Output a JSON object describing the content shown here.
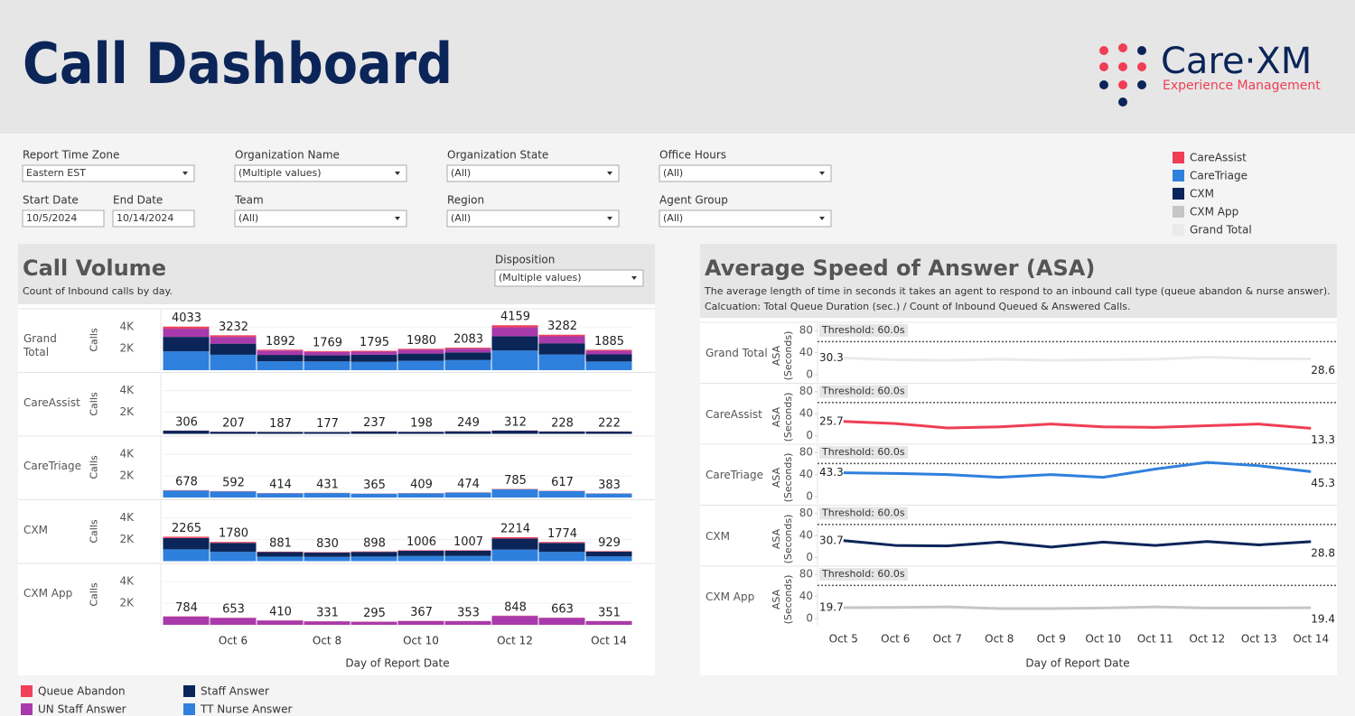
{
  "header": {
    "title": "Call Dashboard"
  },
  "logo": {
    "name": "Care·XM",
    "tagline": "Experience Management"
  },
  "filters": [
    {
      "label": "Report Time Zone",
      "value": "Eastern EST"
    },
    {
      "label": "Organization Name",
      "value": "(Multiple values)"
    },
    {
      "label": "Organization State",
      "value": "(All)"
    },
    {
      "label": "Office Hours",
      "value": "(All)"
    },
    {
      "label": "Team",
      "value": "(All)"
    },
    {
      "label": "Region",
      "value": "(All)"
    },
    {
      "label": "Agent Group",
      "value": "(All)"
    }
  ],
  "date_range": {
    "start": {
      "label": "Start Date",
      "value": "10/5/2024"
    },
    "end": {
      "label": "End Date",
      "value": "10/14/2024"
    }
  },
  "chart_data": [
    {
      "type": "stacked_bar",
      "title": "Call Volume",
      "subtitle": "Count of Inbound calls by day.",
      "disposition_filter": {
        "label": "Disposition",
        "value": "(Multiple values)"
      },
      "categories": [
        null,
        "Oct 6",
        null,
        "Oct 8",
        null,
        "Oct 10",
        null,
        "Oct 12",
        null,
        "Oct 14"
      ],
      "x_label": "Day of Report Date",
      "y_label": "Calls",
      "ylim": [
        0,
        5600
      ],
      "yticks": [
        {
          "value": 2000,
          "label": "2K"
        },
        {
          "value": 4000,
          "label": "4K"
        }
      ],
      "series": [
        {
          "name": "Queue Abandon",
          "color": "#f0405a"
        },
        {
          "name": "UN Staff Answer",
          "color": "#a93aab"
        },
        {
          "name": "Staff Answer",
          "color": "#0b2559"
        },
        {
          "name": "TT Nurse Answer",
          "color": "#2f80dd"
        }
      ],
      "panels": [
        {
          "name": "Grand Total",
          "totals": [
            4033,
            3232,
            1892,
            1769,
            1795,
            1980,
            2083,
            4159,
            3282,
            1885
          ],
          "values": [
            [
              190,
              146,
              79,
              75,
              79,
              87,
              92,
              193,
              147,
              83
            ],
            [
              760,
              633,
              398,
              321,
              286,
              356,
              342,
              822,
              643,
              340
            ],
            [
              1340,
              1026,
              598,
              564,
              655,
              668,
              716,
              1325,
              1046,
              656
            ],
            [
              1743,
              1427,
              817,
              809,
              775,
              869,
              933,
              1819,
              1446,
              806
            ]
          ]
        },
        {
          "name": "CareAssist",
          "totals": [
            306,
            207,
            187,
            177,
            237,
            198,
            249,
            312,
            228,
            222
          ],
          "values": [
            [
              16,
              11,
              9,
              8,
              12,
              10,
              13,
              17,
              12,
              11
            ],
            [
              0,
              0,
              0,
              0,
              0,
              0,
              0,
              0,
              0,
              0
            ],
            [
              290,
              196,
              178,
              169,
              225,
              188,
              236,
              295,
              216,
              211
            ],
            [
              0,
              0,
              0,
              0,
              0,
              0,
              0,
              0,
              0,
              0
            ]
          ]
        },
        {
          "name": "CareTriage",
          "totals": [
            678,
            592,
            414,
            431,
            365,
            409,
            474,
            785,
            617,
            383
          ],
          "values": [
            [
              30,
              25,
              18,
              19,
              16,
              18,
              21,
              35,
              27,
              17
            ],
            [
              0,
              0,
              0,
              0,
              0,
              0,
              0,
              0,
              0,
              0
            ],
            [
              0,
              0,
              0,
              0,
              0,
              0,
              0,
              0,
              0,
              0
            ],
            [
              648,
              567,
              396,
              412,
              349,
              391,
              453,
              750,
              590,
              366
            ]
          ]
        },
        {
          "name": "CXM",
          "totals": [
            2265,
            1780,
            881,
            830,
            898,
            1006,
            1007,
            2214,
            1774,
            929
          ],
          "values": [
            [
              120,
              90,
              40,
              38,
              42,
              48,
              47,
              115,
              88,
              44
            ],
            [
              0,
              0,
              0,
              0,
              0,
              0,
              0,
              0,
              0,
              0
            ],
            [
              1050,
              830,
              420,
              395,
              430,
              480,
              480,
              1030,
              830,
              445
            ],
            [
              1095,
              860,
              421,
              397,
              426,
              478,
              480,
              1069,
              856,
              440
            ]
          ]
        },
        {
          "name": "CXM App",
          "totals": [
            784,
            653,
            410,
            331,
            295,
            367,
            353,
            848,
            663,
            351
          ],
          "values": [
            [
              24,
              20,
              12,
              10,
              9,
              11,
              11,
              26,
              20,
              11
            ],
            [
              760,
              633,
              398,
              321,
              286,
              356,
              342,
              822,
              643,
              340
            ],
            [
              0,
              0,
              0,
              0,
              0,
              0,
              0,
              0,
              0,
              0
            ],
            [
              0,
              0,
              0,
              0,
              0,
              0,
              0,
              0,
              0,
              0
            ]
          ]
        }
      ]
    },
    {
      "type": "line",
      "title": "Average Speed of Answer (ASA)",
      "subtitle": "The average length of time in seconds it takes an agent to respond to an inbound call type (queue abandon & nurse answer).",
      "note": "Calcuation: Total Queue Duration (sec.) / Count of Inbound Queued & Answered Calls.",
      "categories": [
        "Oct 5",
        "Oct 6",
        "Oct 7",
        "Oct 8",
        "Oct 9",
        "Oct 10",
        "Oct 11",
        "Oct 12",
        "Oct 13",
        "Oct 14"
      ],
      "x_label": "Day of Report Date",
      "y_label": "ASA (Seconds)",
      "ylim": [
        0,
        95
      ],
      "yticks": [
        0,
        40,
        80
      ],
      "threshold": {
        "value": 60,
        "label": "Threshold: 60.0s"
      },
      "panels": [
        {
          "name": "Grand Total",
          "color": "#eaeaea",
          "values": [
            30.3,
            27,
            26,
            28,
            26,
            27,
            28,
            32,
            29,
            28.6
          ]
        },
        {
          "name": "CareAssist",
          "color": "#ef3e55",
          "values": [
            25.7,
            22,
            14,
            16,
            21,
            16,
            15,
            18,
            21,
            13.3
          ]
        },
        {
          "name": "CareTriage",
          "color": "#2f80dd",
          "values": [
            43.3,
            42,
            40,
            35,
            40,
            35,
            50,
            62,
            56,
            45.3
          ]
        },
        {
          "name": "CXM",
          "color": "#0b2559",
          "values": [
            30.7,
            22,
            21,
            28,
            19,
            28,
            22,
            29,
            23,
            28.8
          ]
        },
        {
          "name": "CXM App",
          "color": "#c6c6c6",
          "values": [
            19.7,
            20,
            21,
            18,
            18,
            19,
            21,
            19,
            19,
            19.4
          ]
        }
      ]
    }
  ]
}
